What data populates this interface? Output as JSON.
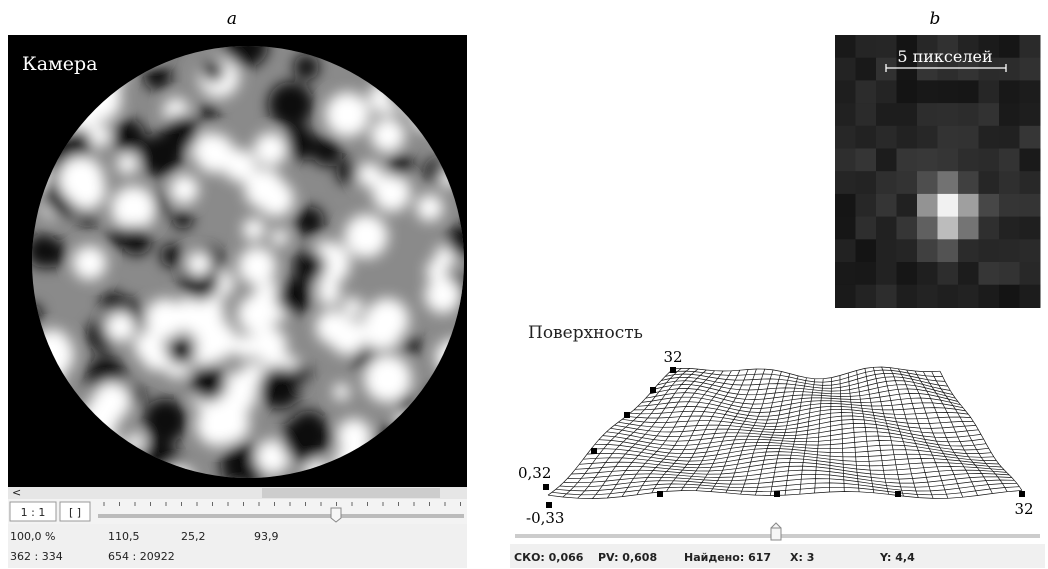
{
  "panel_a": {
    "label": "a",
    "camera_title": "Камера",
    "scroll_arrow": "<",
    "buttons": [
      "1 : 1",
      "[ ]"
    ],
    "status": [
      [
        "100,0 %",
        "110,5",
        "25,2",
        "93,9"
      ],
      [
        "362 : 334",
        "654 : 20922"
      ]
    ]
  },
  "panel_b": {
    "label": "b",
    "scale_label": "5 пикселей"
  },
  "surface": {
    "title": "Поверхность",
    "top_left_label": "32",
    "z_max_label": "0,32",
    "z_min_label": "-0,33",
    "right_label": "32"
  },
  "status_bar": [
    "СКО: 0,066",
    "PV: 0,608",
    "Найдено: 617",
    "X: 3",
    "Y: 4,4"
  ]
}
